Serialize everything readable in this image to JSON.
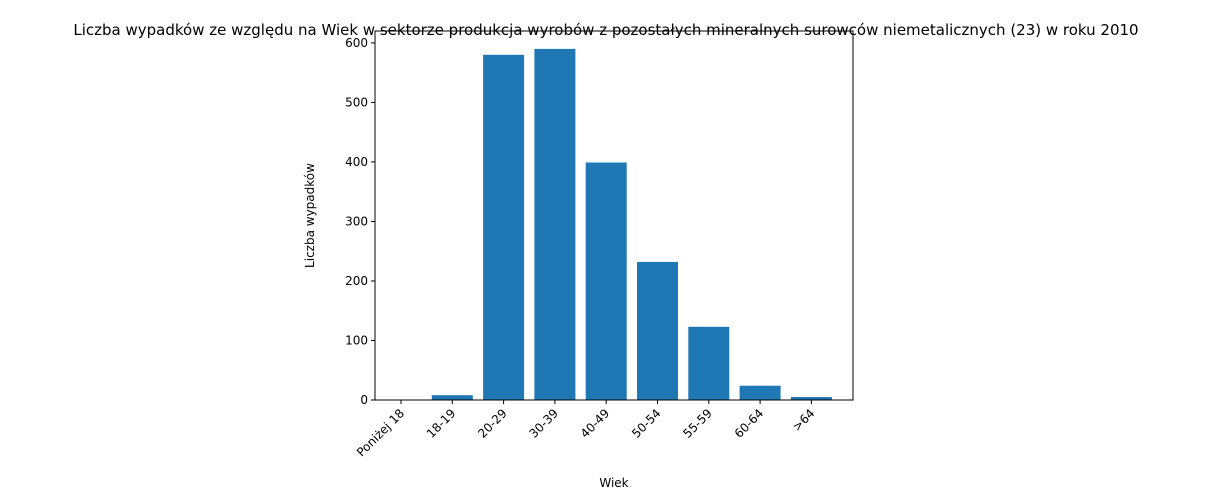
{
  "chart_data": {
    "type": "bar",
    "title": "Liczba wypadków ze względu na Wiek w sektorze produkcja wyrobów z pozostałych mineralnych surowców niemetalicznych (23)  w roku 2010",
    "xlabel": "Wiek",
    "ylabel": "Liczba wypadków",
    "categories": [
      "Poniżej 18",
      "18-19",
      "20-29",
      "30-39",
      "40-49",
      "50-54",
      "55-59",
      "60-64",
      ">64"
    ],
    "values": [
      0,
      8,
      580,
      590,
      399,
      232,
      123,
      24,
      5
    ],
    "ylim": [
      0,
      620
    ],
    "yticks": [
      0,
      100,
      200,
      300,
      400,
      500,
      600
    ],
    "bar_color": "#1f77b4",
    "grid": false,
    "legend": "none"
  }
}
